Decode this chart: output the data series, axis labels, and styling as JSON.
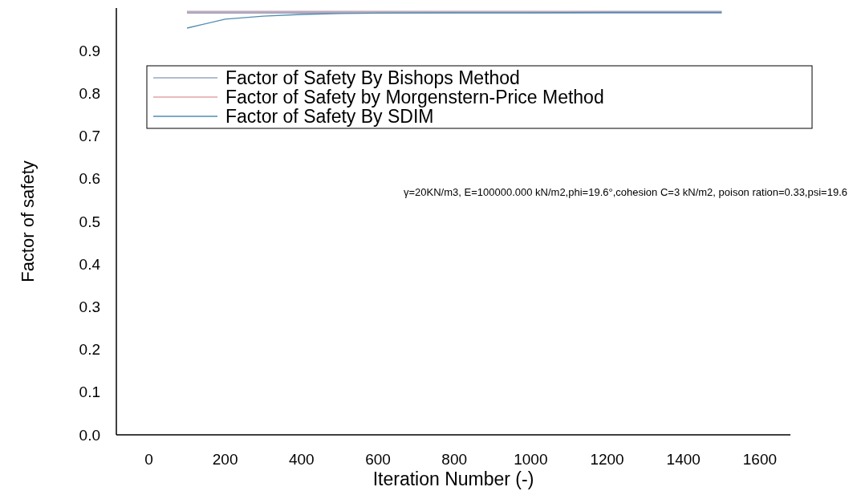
{
  "chart_data": {
    "type": "line",
    "xlabel": "Iteration Number (-)",
    "ylabel": "Factor of safety",
    "x": [
      100,
      200,
      300,
      400,
      500,
      600,
      800,
      1000,
      1200,
      1500
    ],
    "series": [
      {
        "name": "Factor of Safety By Bishops Method",
        "color": "#9aa6c6",
        "values": [
          0.99,
          0.99,
          0.99,
          0.99,
          0.99,
          0.99,
          0.99,
          0.99,
          0.99,
          0.99
        ]
      },
      {
        "name": "Factor of Safety by Morgenstern-Price Method",
        "color": "#e0a4a4",
        "values": [
          0.991,
          0.991,
          0.991,
          0.991,
          0.991,
          0.991,
          0.991,
          0.991,
          0.991,
          0.991
        ]
      },
      {
        "name": "Factor of Safety By SDIM",
        "color": "#4f8db3",
        "values": [
          0.953,
          0.974,
          0.981,
          0.985,
          0.987,
          0.988,
          0.989,
          0.989,
          0.99,
          0.99
        ]
      }
    ],
    "xlim": [
      -85,
      1680
    ],
    "xticks": [
      0,
      200,
      400,
      600,
      800,
      1000,
      1200,
      1400,
      1600
    ],
    "ylim": [
      0,
      1.0
    ],
    "yticks": [
      {
        "value": 0,
        "label": "0.0"
      },
      0.1,
      0.2,
      0.3,
      0.4,
      0.5,
      0.6,
      0.7,
      0.8,
      0.9
    ],
    "legend": "top",
    "annotations": [
      "γ=20KN/m3, E=100000.000 kN/m2,phi=19.6°,cohesion C=3 kN/m2, poison ration=0.33,psi=19.6"
    ]
  }
}
